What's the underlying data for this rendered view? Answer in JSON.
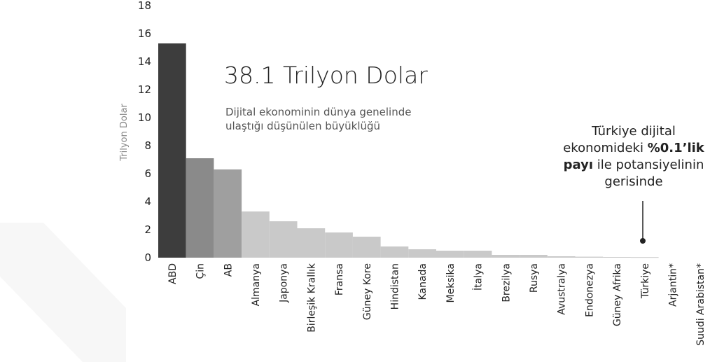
{
  "chart_data": {
    "type": "bar",
    "ylabel": "Trilyon Dolar",
    "ylim": [
      0,
      18
    ],
    "yticks": [
      0,
      2,
      4,
      6,
      8,
      10,
      12,
      14,
      16,
      18
    ],
    "categories": [
      "ABD",
      "Çin",
      "AB",
      "Almanya",
      "Japonya",
      "Birleşik Krallık",
      "Fransa",
      "Güney Kore",
      "Hindistan",
      "Kanada",
      "Meksika",
      "İtalya",
      "Brezilya",
      "Rusya",
      "Avustralya",
      "Endonezya",
      "Güney Afrika",
      "Türkiye",
      "Arjantin*",
      "Suudi Arabistan*"
    ],
    "values": [
      15.3,
      7.1,
      6.3,
      3.3,
      2.6,
      2.1,
      1.8,
      1.5,
      0.8,
      0.6,
      0.5,
      0.5,
      0.2,
      0.2,
      0.1,
      0.07,
      0.05,
      0.04,
      null,
      null
    ],
    "colors": {
      "ABD": "#3d3d3d",
      "Çin": "#8a8a8a",
      "AB": "#9f9f9f",
      "other": "#c9c9c9"
    },
    "annotations": {
      "headline": "38.1 Trilyon Dolar",
      "subtitle_lines": [
        "Dijital ekonominin dünya genelinde",
        "ulaştığı düşünülen büyüklüğü"
      ],
      "note_line1": "Türkiye dijital",
      "note_line2_pre": "ekonomideki ",
      "note_line2_bold": "%0.1’lik",
      "note_line3_bold": "payı",
      "note_line3_post": " ile potansiyelinin",
      "note_line4": "gerisinde"
    },
    "grid": false
  }
}
